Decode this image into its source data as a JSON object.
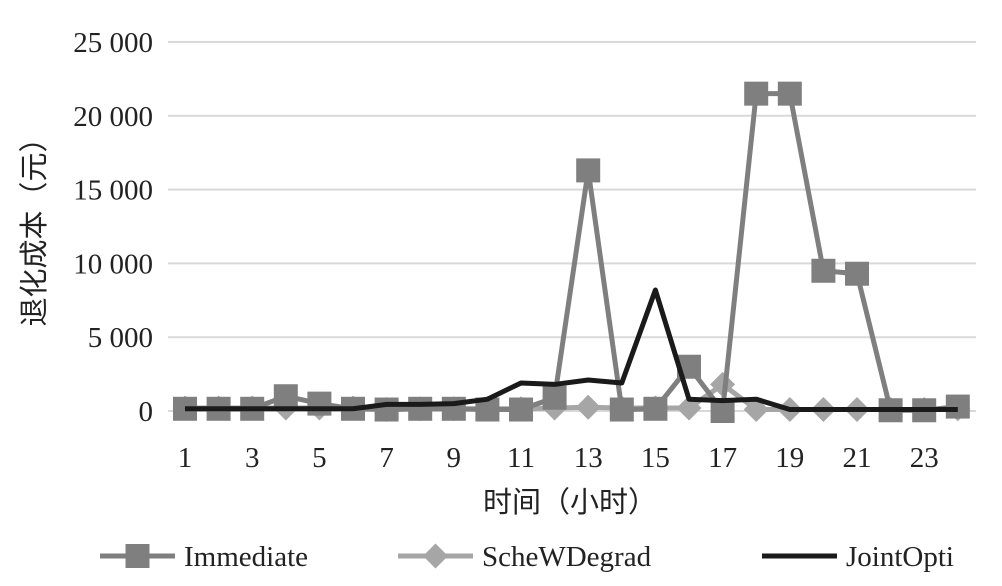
{
  "chart_data": {
    "type": "line",
    "title": "",
    "xlabel": "时间（小时）",
    "ylabel": "退化成本（元）",
    "ylim": [
      0,
      25000
    ],
    "y_ticks": [
      0,
      5000,
      10000,
      15000,
      20000,
      25000
    ],
    "y_tick_labels": [
      "0",
      "5 000",
      "10 000",
      "15 000",
      "20 000",
      "25 000"
    ],
    "x": [
      1,
      2,
      3,
      4,
      5,
      6,
      7,
      8,
      9,
      10,
      11,
      12,
      13,
      14,
      15,
      16,
      17,
      18,
      19,
      20,
      21,
      22,
      23,
      24
    ],
    "x_tick_labels": [
      "1",
      "3",
      "5",
      "7",
      "9",
      "11",
      "13",
      "15",
      "17",
      "19",
      "21",
      "23"
    ],
    "grid": true,
    "legend_position": "bottom",
    "series": [
      {
        "name": "Immediate",
        "color": "#7f7f7f",
        "marker": "square",
        "values": [
          150,
          150,
          150,
          1000,
          500,
          150,
          100,
          150,
          150,
          100,
          100,
          900,
          16300,
          100,
          150,
          3000,
          0,
          21500,
          21500,
          9500,
          9300,
          50,
          50,
          300
        ]
      },
      {
        "name": "ScheWDegrad",
        "color": "#a6a6a6",
        "marker": "diamond",
        "values": [
          200,
          200,
          200,
          200,
          200,
          200,
          100,
          150,
          150,
          150,
          150,
          200,
          250,
          200,
          200,
          200,
          1800,
          100,
          100,
          100,
          100,
          100,
          100,
          150
        ]
      },
      {
        "name": "JointOpti",
        "color": "#1a1a1a",
        "marker": "none",
        "values": [
          150,
          150,
          150,
          150,
          150,
          150,
          450,
          450,
          500,
          800,
          1900,
          1800,
          2100,
          1900,
          8200,
          800,
          700,
          800,
          100,
          100,
          100,
          100,
          100,
          100
        ]
      }
    ]
  }
}
